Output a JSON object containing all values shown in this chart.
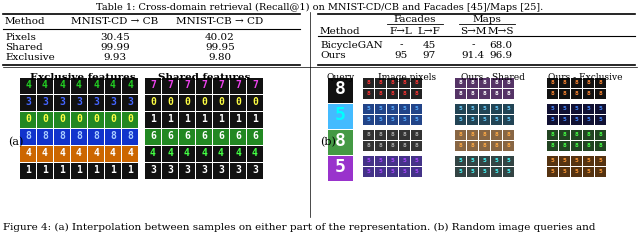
{
  "figure_caption": "Figure 4: (a) Interpolation between samples on either part of the representation. (b) Random image queries and",
  "caption_fontsize": 7.5,
  "bg_color": "#ffffff",
  "figsize": [
    6.4,
    2.36
  ],
  "dpi": 100,
  "table1_title": "Table 1: Cross-domain retrieval (Recall@1) on MNIST-CD/CB and Facades [45]/Maps [25].",
  "table1_title_fontsize": 7.0,
  "left_table": {
    "headers": [
      "Method",
      "MNIST-CD → CB",
      "MNIST-CB → CD"
    ],
    "rows": [
      [
        "Pixels",
        "30.45",
        "40.02"
      ],
      [
        "Shared",
        "99.99",
        "99.95"
      ],
      [
        "Exclusive",
        "9.93",
        "9.80"
      ]
    ]
  },
  "right_table": {
    "group_headers": [
      "Facades",
      "Maps"
    ],
    "sub_headers": [
      "F→L",
      "L→F",
      "S→M",
      "M→S"
    ],
    "col_header": "Method",
    "rows": [
      [
        "BicycleGAN",
        "-",
        "45",
        "-",
        "68.0"
      ],
      [
        "Ours",
        "95",
        "97",
        "91.4",
        "96.9"
      ]
    ]
  },
  "label_a": "(a)",
  "label_b": "(b)",
  "exclusive_features_title": "Exclusive features",
  "shared_features_title": "Shared features",
  "query_label": "Query",
  "image_pixels_label": "Image pixels",
  "ours_shared_label": "Ours - Shared",
  "ours_exclusive_label": "Ours - Exclusive",
  "exc_row_bg": [
    "#111111",
    "#111111",
    "#228822",
    "#1133cc",
    "#cc6600",
    "#111111"
  ],
  "exc_row_fg": [
    "#22cc22",
    "#4466ff",
    "#ffff44",
    "#aaccff",
    "#ffffff",
    "#ffffff"
  ],
  "exc_digits": [
    "4",
    "3",
    "0",
    "8",
    "4",
    "1"
  ],
  "sh_row_bg": [
    "#111111",
    "#111111",
    "#111111",
    "#228822",
    "#111111",
    "#111111"
  ],
  "sh_row_fg": [
    "#ee44ee",
    "#ffff44",
    "#ffffff",
    "#ffffff",
    "#44ff44",
    "#ffffff"
  ],
  "sh_digits": [
    "7",
    "0",
    "1",
    "6",
    "4",
    "3"
  ],
  "query_colors": [
    "#111111",
    "#44bbff",
    "#449944",
    "#9933cc"
  ],
  "query_digits": [
    "8",
    "5",
    "8",
    "5"
  ],
  "query_fg": [
    "#ffffff",
    "#00ffff",
    "#ffffff",
    "#ffffff"
  ],
  "panel_b_rows": [
    {
      "bg": "#222222",
      "fg": "#ff4444"
    },
    {
      "bg": "#884488",
      "fg": "#ffffff"
    },
    {
      "bg": "#111111",
      "fg": "#ffaa44"
    },
    {
      "bg": "#111111",
      "fg": "#66aaff"
    }
  ]
}
